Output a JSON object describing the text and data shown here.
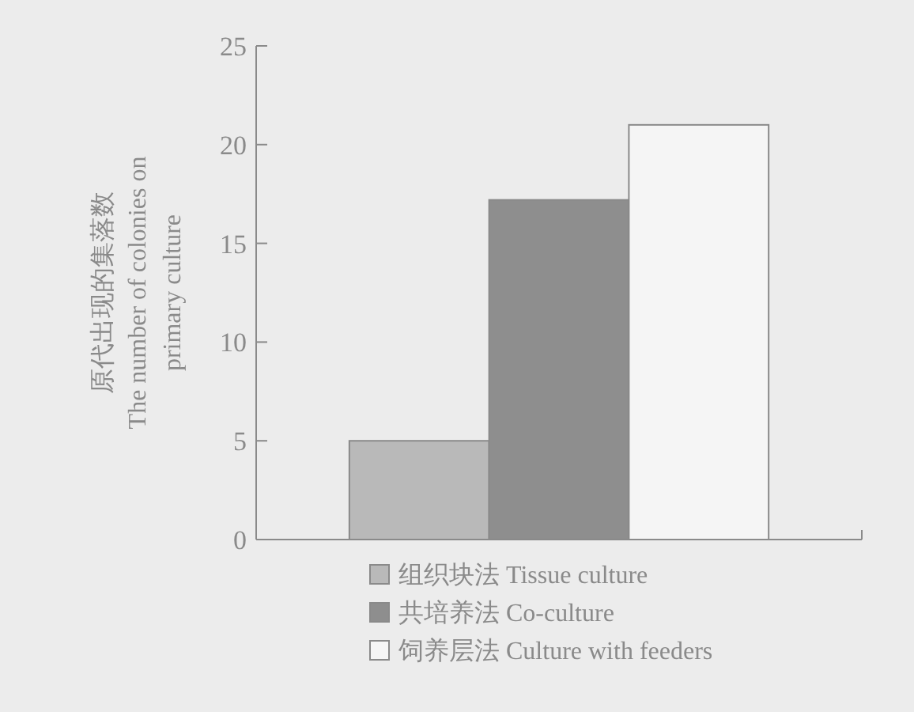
{
  "chart_data": {
    "type": "bar",
    "ylabel": "原代出现的集落数\nThe number of colonies on\nprimary culture",
    "categories": [
      null
    ],
    "series": [
      {
        "name": "组织块法 Tissue culture",
        "color": "#b9b9b9",
        "values": [
          5
        ]
      },
      {
        "name": "共培养法 Co-culture",
        "color": "#8e8e8e",
        "values": [
          17.2
        ]
      },
      {
        "name": "饲养层法 Culture with feeders",
        "color": "#f5f5f5",
        "values": [
          21
        ]
      }
    ],
    "ylim": [
      0,
      25
    ],
    "yticks": [
      0,
      5,
      10,
      15,
      20,
      25
    ],
    "grid": false,
    "legend": "bottom"
  }
}
